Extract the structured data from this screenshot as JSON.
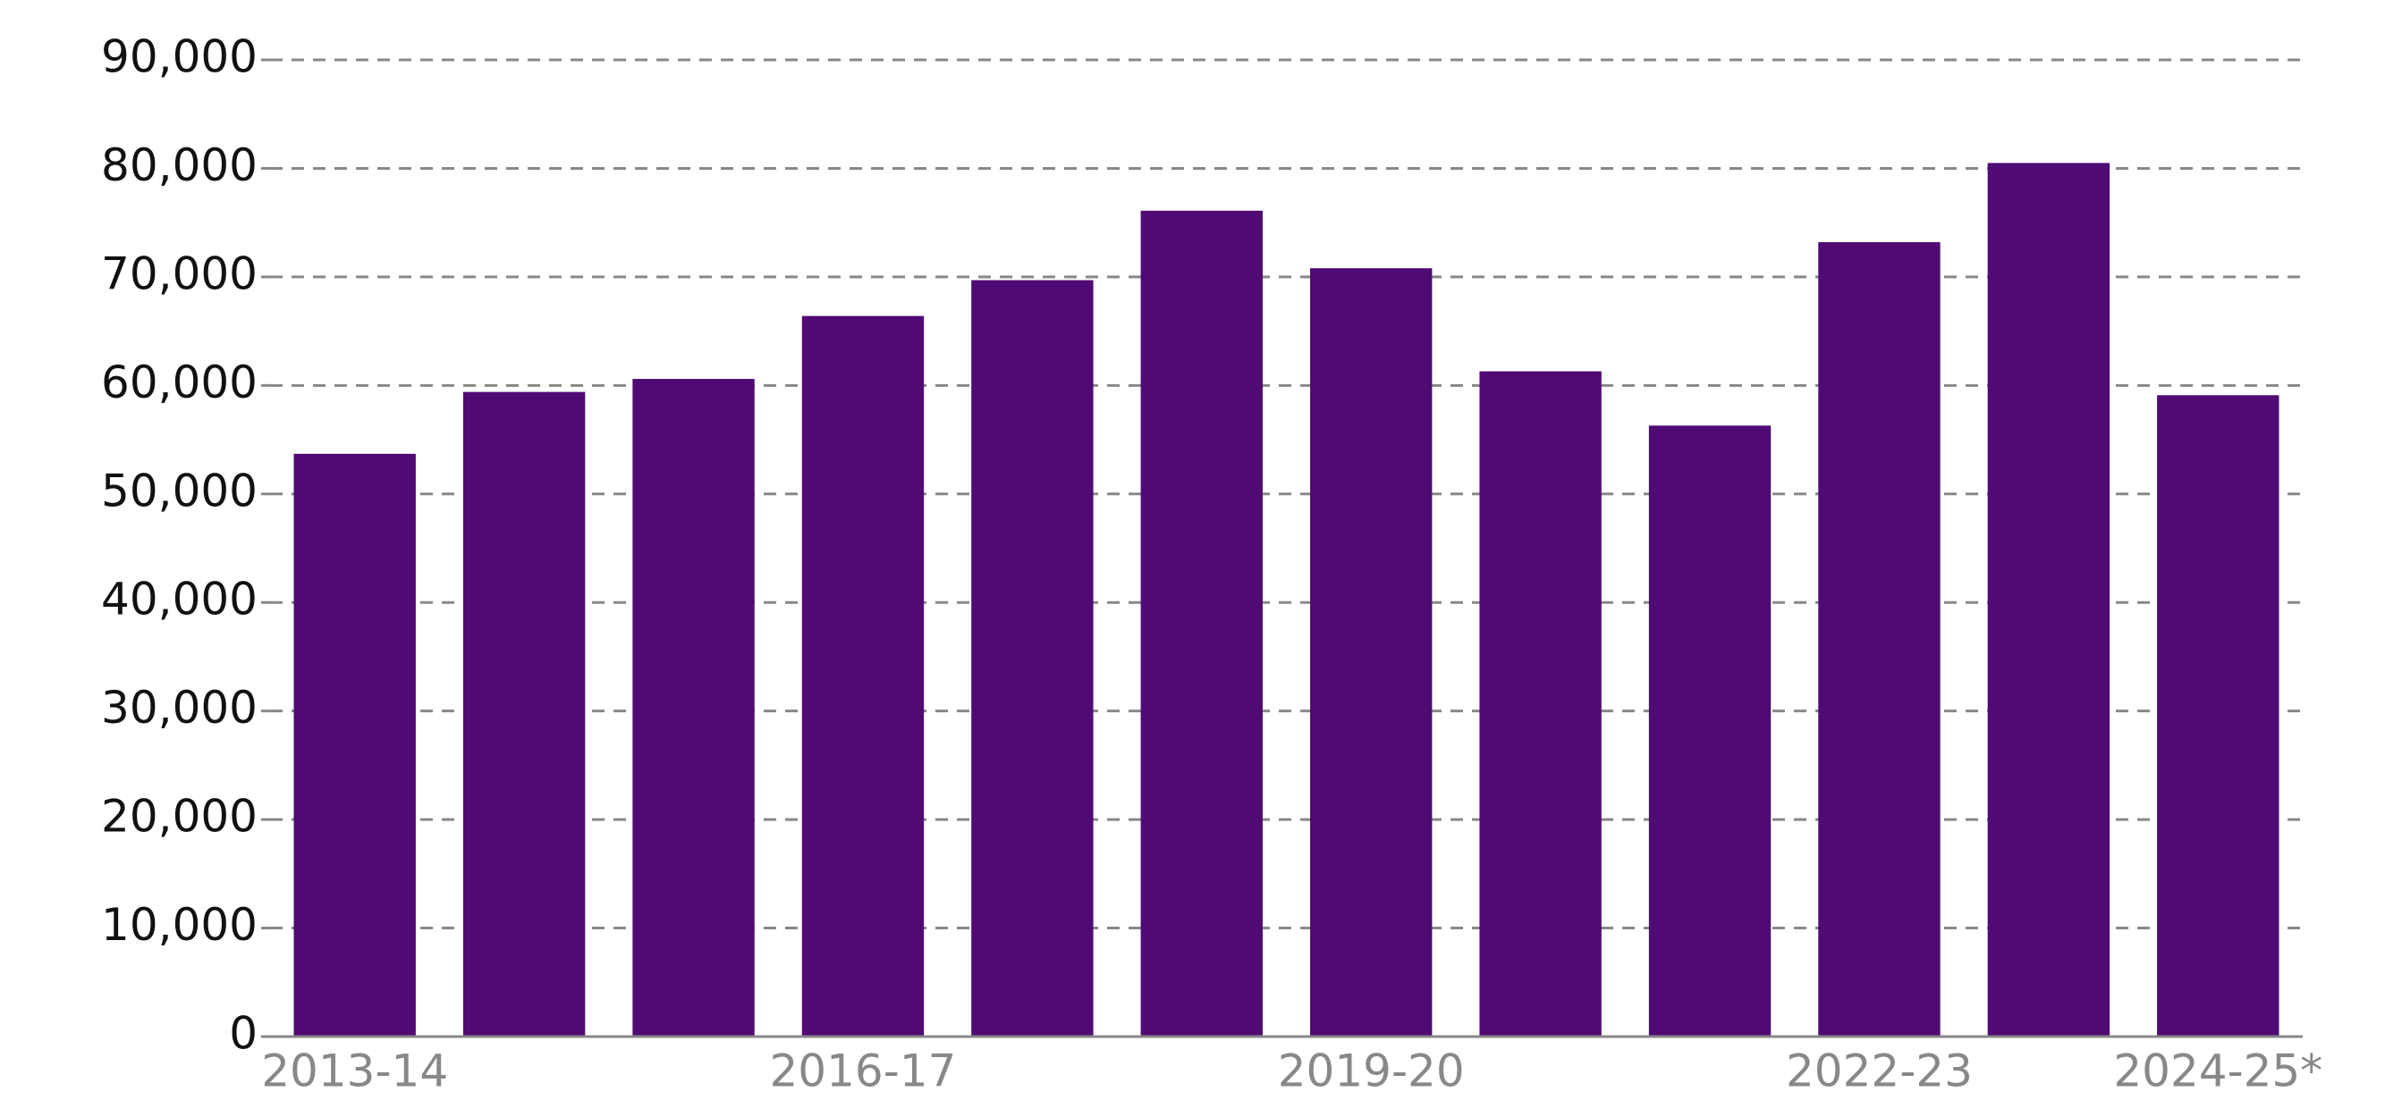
{
  "chart_data": {
    "type": "bar",
    "categories": [
      "2013-14",
      null,
      null,
      "2016-17",
      null,
      null,
      "2019-20",
      null,
      null,
      "2022-23",
      null,
      "2024-25*"
    ],
    "values": [
      53700,
      59400,
      60600,
      66400,
      69700,
      76100,
      70800,
      61300,
      56300,
      73200,
      80500,
      59100
    ],
    "color": "#500a73",
    "ylim": [
      0,
      90000
    ],
    "yticks": [
      0,
      {
        "value": 10000,
        "label": "10,000"
      },
      {
        "value": 20000,
        "label": "20,000"
      },
      {
        "value": 30000,
        "label": "30,000"
      },
      {
        "value": 40000,
        "label": "40,000"
      },
      {
        "value": 50000,
        "label": "50,000"
      },
      {
        "value": 60000,
        "label": "60,000"
      },
      {
        "value": 70000,
        "label": "70,000"
      },
      {
        "value": 80000,
        "label": "80,000"
      },
      {
        "value": 90000,
        "label": "90,000"
      }
    ],
    "grid": true
  }
}
